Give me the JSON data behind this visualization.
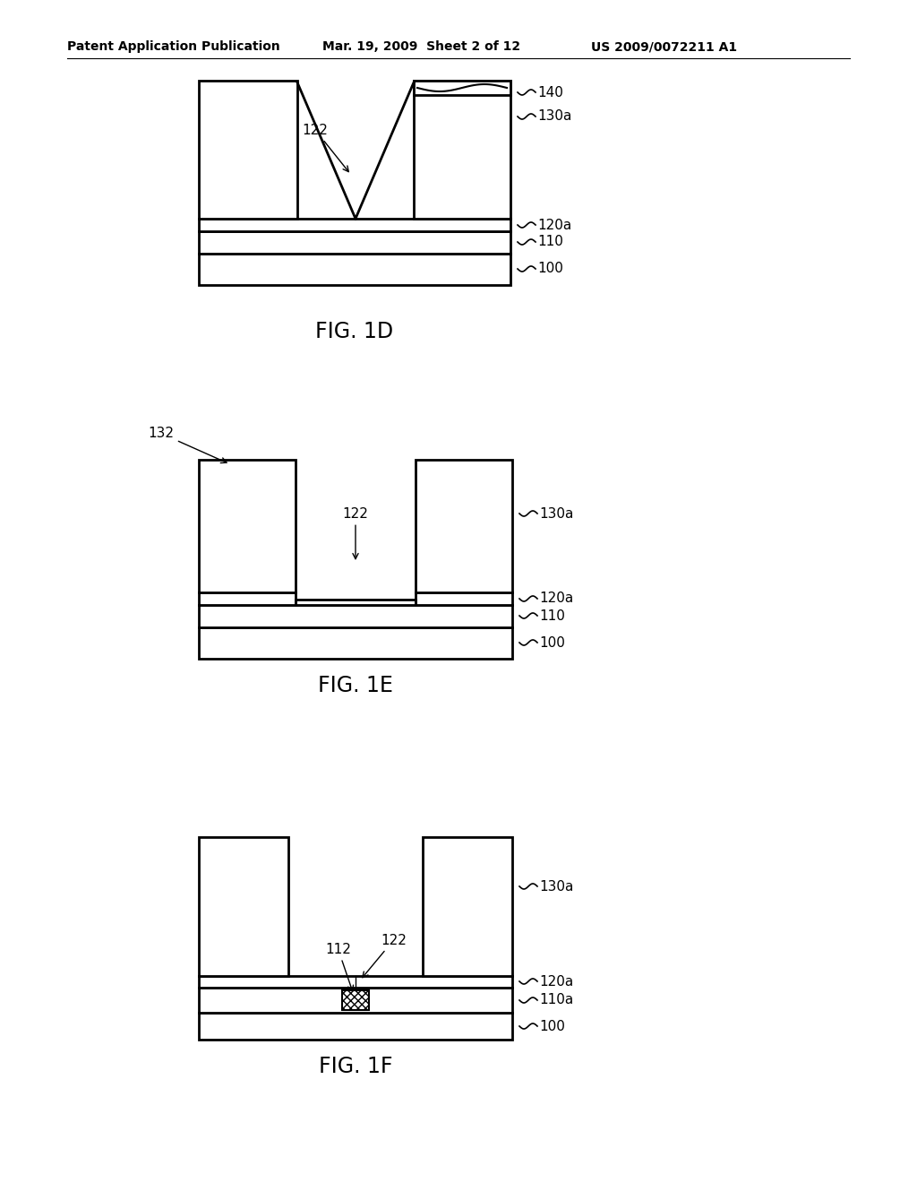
{
  "bg_color": "#ffffff",
  "line_color": "#000000",
  "header_left": "Patent Application Publication",
  "header_mid": "Mar. 19, 2009  Sheet 2 of 12",
  "header_right": "US 2009/0072211 A1",
  "fig1d_label": "FIG. 1D",
  "fig1e_label": "FIG. 1E",
  "fig1f_label": "FIG. 1F",
  "lw": 1.5,
  "lw_thick": 2.0
}
